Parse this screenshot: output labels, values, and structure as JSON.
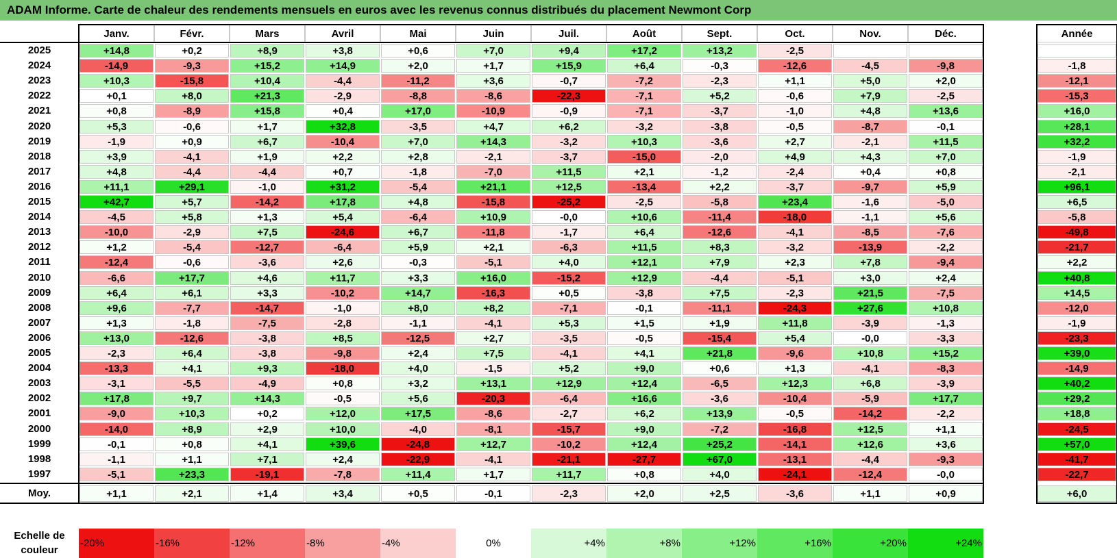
{
  "title": "ADAM Informe. Carte de chaleur des rendements mensuels en euros avec les revenus connus distribués du placement Newmont Corp",
  "colors": {
    "title_bg": "#7cc576",
    "neg_max": "#ee1111",
    "pos_max": "#11dd11",
    "neutral": "#ffffff"
  },
  "chart_data": {
    "type": "heatmap",
    "title": "ADAM Informe. Carte de chaleur des rendements mensuels en euros avec les revenus connus distribués du placement Newmont Corp",
    "columns": [
      "Janv.",
      "Févr.",
      "Mars",
      "Avril",
      "Mai",
      "Juin",
      "Juil.",
      "Août",
      "Sept.",
      "Oct.",
      "Nov.",
      "Déc."
    ],
    "year_column_label": "Année",
    "rows": [
      {
        "year": "2025",
        "values": [
          "+14,8",
          "+0,2",
          "+8,9",
          "+3,8",
          "+0,6",
          "+7,0",
          "+9,4",
          "+17,2",
          "+13,2",
          "-2,5",
          "",
          ""
        ],
        "annual": ""
      },
      {
        "year": "2024",
        "values": [
          "-14,9",
          "-9,3",
          "+15,2",
          "+14,9",
          "+2,0",
          "+1,7",
          "+15,9",
          "+6,4",
          "-0,3",
          "-12,6",
          "-4,5",
          "-9,8"
        ],
        "annual": "-1,8"
      },
      {
        "year": "2023",
        "values": [
          "+10,3",
          "-15,8",
          "+10,4",
          "-4,4",
          "-11,2",
          "+3,6",
          "-0,7",
          "-7,2",
          "-2,3",
          "+1,1",
          "+5,0",
          "+2,0"
        ],
        "annual": "-12,1"
      },
      {
        "year": "2022",
        "values": [
          "+0,1",
          "+8,0",
          "+21,3",
          "-2,9",
          "-8,8",
          "-8,6",
          "-22,3",
          "-7,1",
          "+5,2",
          "-0,6",
          "+7,9",
          "-2,5"
        ],
        "annual": "-15,3"
      },
      {
        "year": "2021",
        "values": [
          "+0,8",
          "-8,9",
          "+15,8",
          "+0,4",
          "+17,0",
          "-10,9",
          "-0,9",
          "-7,1",
          "-3,7",
          "-1,0",
          "+4,8",
          "+13,6"
        ],
        "annual": "+16,0"
      },
      {
        "year": "2020",
        "values": [
          "+5,3",
          "-0,6",
          "+1,7",
          "+32,8",
          "-3,5",
          "+4,7",
          "+6,2",
          "-3,2",
          "-3,8",
          "-0,5",
          "-8,7",
          "-0,1"
        ],
        "annual": "+28,1"
      },
      {
        "year": "2019",
        "values": [
          "-1,9",
          "+0,9",
          "+6,7",
          "-10,4",
          "+7,0",
          "+14,3",
          "-3,2",
          "+10,3",
          "-3,6",
          "+2,7",
          "-2,1",
          "+11,5"
        ],
        "annual": "+32,2"
      },
      {
        "year": "2018",
        "values": [
          "+3,9",
          "-4,1",
          "+1,9",
          "+2,2",
          "+2,8",
          "-2,1",
          "-3,7",
          "-15,0",
          "-2,0",
          "+4,9",
          "+4,3",
          "+7,0"
        ],
        "annual": "-1,9"
      },
      {
        "year": "2017",
        "values": [
          "+4,8",
          "-4,4",
          "-4,4",
          "+0,7",
          "-1,8",
          "-7,0",
          "+11,5",
          "+2,1",
          "-1,2",
          "-2,4",
          "+0,4",
          "+0,8"
        ],
        "annual": "-2,1"
      },
      {
        "year": "2016",
        "values": [
          "+11,1",
          "+29,1",
          "-1,0",
          "+31,2",
          "-5,4",
          "+21,1",
          "+12,5",
          "-13,4",
          "+2,2",
          "-3,7",
          "-9,7",
          "+5,9"
        ],
        "annual": "+96,1"
      },
      {
        "year": "2015",
        "values": [
          "+42,7",
          "+5,7",
          "-14,2",
          "+17,8",
          "+4,8",
          "-15,8",
          "-25,2",
          "-2,5",
          "-5,8",
          "+23,4",
          "-1,6",
          "-5,0"
        ],
        "annual": "+6,5"
      },
      {
        "year": "2014",
        "values": [
          "-4,5",
          "+5,8",
          "+1,3",
          "+5,4",
          "-6,4",
          "+10,9",
          "-0,0",
          "+10,6",
          "-11,4",
          "-18,0",
          "-1,1",
          "+5,6"
        ],
        "annual": "-5,8"
      },
      {
        "year": "2013",
        "values": [
          "-10,0",
          "-2,9",
          "+7,5",
          "-24,6",
          "+6,7",
          "-11,8",
          "-1,7",
          "+6,4",
          "-12,6",
          "-4,1",
          "-8,5",
          "-7,6"
        ],
        "annual": "-49,8"
      },
      {
        "year": "2012",
        "values": [
          "+1,2",
          "-5,4",
          "-12,7",
          "-6,4",
          "+5,9",
          "+2,1",
          "-6,3",
          "+11,5",
          "+8,3",
          "-3,2",
          "-13,9",
          "-2,2"
        ],
        "annual": "-21,7"
      },
      {
        "year": "2011",
        "values": [
          "-12,4",
          "-0,6",
          "-3,6",
          "+2,6",
          "-0,3",
          "-5,1",
          "+4,0",
          "+12,1",
          "+7,9",
          "+2,3",
          "+7,8",
          "-9,4"
        ],
        "annual": "+2,2"
      },
      {
        "year": "2010",
        "values": [
          "-6,6",
          "+17,7",
          "+4,6",
          "+11,7",
          "+3,3",
          "+16,0",
          "-15,2",
          "+12,9",
          "-4,4",
          "-5,1",
          "+3,0",
          "+2,4"
        ],
        "annual": "+40,8"
      },
      {
        "year": "2009",
        "values": [
          "+6,4",
          "+6,1",
          "+3,3",
          "-10,2",
          "+14,7",
          "-16,3",
          "+0,5",
          "-3,8",
          "+7,5",
          "-2,3",
          "+21,5",
          "-7,5"
        ],
        "annual": "+14,5"
      },
      {
        "year": "2008",
        "values": [
          "+9,6",
          "-7,7",
          "-14,7",
          "-1,0",
          "+8,0",
          "+8,2",
          "-7,1",
          "-0,1",
          "-11,1",
          "-24,3",
          "+27,6",
          "+10,8"
        ],
        "annual": "-12,0"
      },
      {
        "year": "2007",
        "values": [
          "+1,3",
          "-1,8",
          "-7,5",
          "-2,8",
          "-1,1",
          "-4,1",
          "+5,3",
          "+1,5",
          "+1,9",
          "+11,8",
          "-3,9",
          "-1,3"
        ],
        "annual": "-1,9"
      },
      {
        "year": "2006",
        "values": [
          "+13,0",
          "-12,6",
          "-3,8",
          "+8,5",
          "-12,5",
          "+2,7",
          "-3,5",
          "-0,5",
          "-15,4",
          "+5,4",
          "-0,0",
          "-3,3"
        ],
        "annual": "-23,3"
      },
      {
        "year": "2005",
        "values": [
          "-2,3",
          "+6,4",
          "-3,8",
          "-9,8",
          "+2,4",
          "+7,5",
          "-4,1",
          "+4,1",
          "+21,8",
          "-9,6",
          "+10,8",
          "+15,2"
        ],
        "annual": "+39,0"
      },
      {
        "year": "2004",
        "values": [
          "-13,3",
          "+4,1",
          "+9,3",
          "-18,0",
          "+4,0",
          "-1,5",
          "+5,2",
          "+9,0",
          "+0,6",
          "+1,3",
          "-4,1",
          "-8,3"
        ],
        "annual": "-14,9"
      },
      {
        "year": "2003",
        "values": [
          "-3,1",
          "-5,5",
          "-4,9",
          "+0,8",
          "+3,2",
          "+13,1",
          "+12,9",
          "+12,4",
          "-6,5",
          "+12,3",
          "+6,8",
          "-3,9"
        ],
        "annual": "+40,2"
      },
      {
        "year": "2002",
        "values": [
          "+17,8",
          "+9,7",
          "+14,3",
          "-0,5",
          "+5,6",
          "-20,3",
          "-6,4",
          "+16,6",
          "-3,6",
          "-10,4",
          "-5,9",
          "+17,7"
        ],
        "annual": "+29,2"
      },
      {
        "year": "2001",
        "values": [
          "-9,0",
          "+10,3",
          "+0,2",
          "+12,0",
          "+17,5",
          "-8,6",
          "-2,7",
          "+6,2",
          "+13,9",
          "-0,5",
          "-14,2",
          "-2,2"
        ],
        "annual": "+18,8"
      },
      {
        "year": "2000",
        "values": [
          "-14,0",
          "+8,9",
          "+2,9",
          "+10,0",
          "-4,0",
          "-8,1",
          "-15,7",
          "+9,0",
          "-7,2",
          "-16,8",
          "+12,5",
          "+1,1"
        ],
        "annual": "-24,5"
      },
      {
        "year": "1999",
        "values": [
          "-0,1",
          "+0,8",
          "+4,1",
          "+39,6",
          "-24,8",
          "+12,7",
          "-10,2",
          "+12,4",
          "+25,2",
          "-14,1",
          "+12,6",
          "+3,6"
        ],
        "annual": "+57,0"
      },
      {
        "year": "1998",
        "values": [
          "-1,1",
          "+1,1",
          "+7,1",
          "+2,4",
          "-22,9",
          "-4,1",
          "-21,1",
          "-27,7",
          "+67,0",
          "-13,1",
          "-4,4",
          "-9,3"
        ],
        "annual": "-41,7"
      },
      {
        "year": "1997",
        "values": [
          "-5,1",
          "+23,3",
          "-19,1",
          "-7,8",
          "+11,4",
          "+1,7",
          "+11,7",
          "+0,8",
          "+4,0",
          "-24,1",
          "-12,4",
          "-0,0"
        ],
        "annual": "-22,7"
      }
    ],
    "average": {
      "label": "Moy.",
      "values": [
        "+1,1",
        "+2,1",
        "+1,4",
        "+3,4",
        "+0,5",
        "-0,1",
        "-2,3",
        "+2,0",
        "+2,5",
        "-3,6",
        "+1,1",
        "+0,9"
      ],
      "annual": "+6,0"
    },
    "scale": {
      "label": "Echelle de couleur",
      "stops": [
        {
          "text": "-20%",
          "value": -20
        },
        {
          "text": "-16%",
          "value": -16
        },
        {
          "text": "-12%",
          "value": -12
        },
        {
          "text": "-8%",
          "value": -8
        },
        {
          "text": "-4%",
          "value": -4
        },
        {
          "text": "0%",
          "value": 0
        },
        {
          "text": "+4%",
          "value": 4
        },
        {
          "text": "+8%",
          "value": 8
        },
        {
          "text": "+12%",
          "value": 12
        },
        {
          "text": "+16%",
          "value": 16
        },
        {
          "text": "+20%",
          "value": 20
        },
        {
          "text": "+24%",
          "value": 24
        }
      ]
    }
  }
}
